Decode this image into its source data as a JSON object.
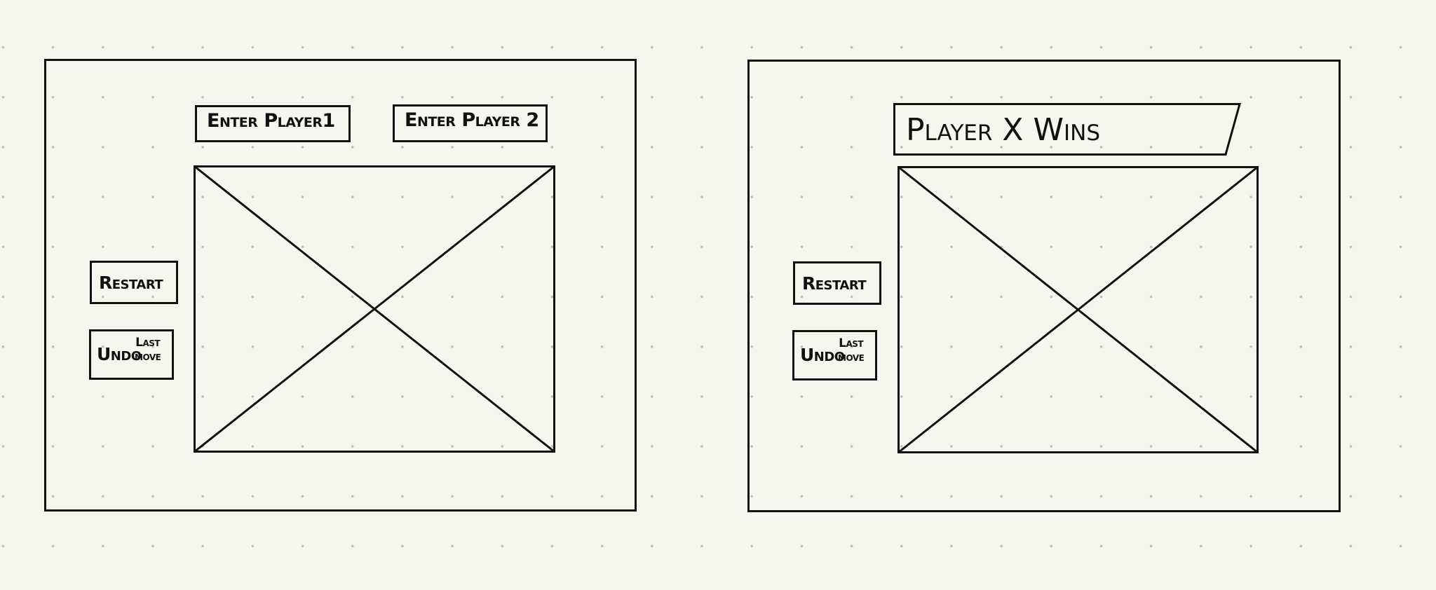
{
  "screens": [
    {
      "player1_field": "Enter Player1",
      "player2_field": "Enter Player 2",
      "restart_label": "Restart",
      "undo_label": "Undo",
      "undo_sub_label": "Last",
      "undo_sub_label2": "move"
    },
    {
      "win_banner": "Player X Wins",
      "restart_label": "Restart",
      "undo_label": "Undo",
      "undo_sub_label": "Last",
      "undo_sub_label2": "move"
    }
  ]
}
